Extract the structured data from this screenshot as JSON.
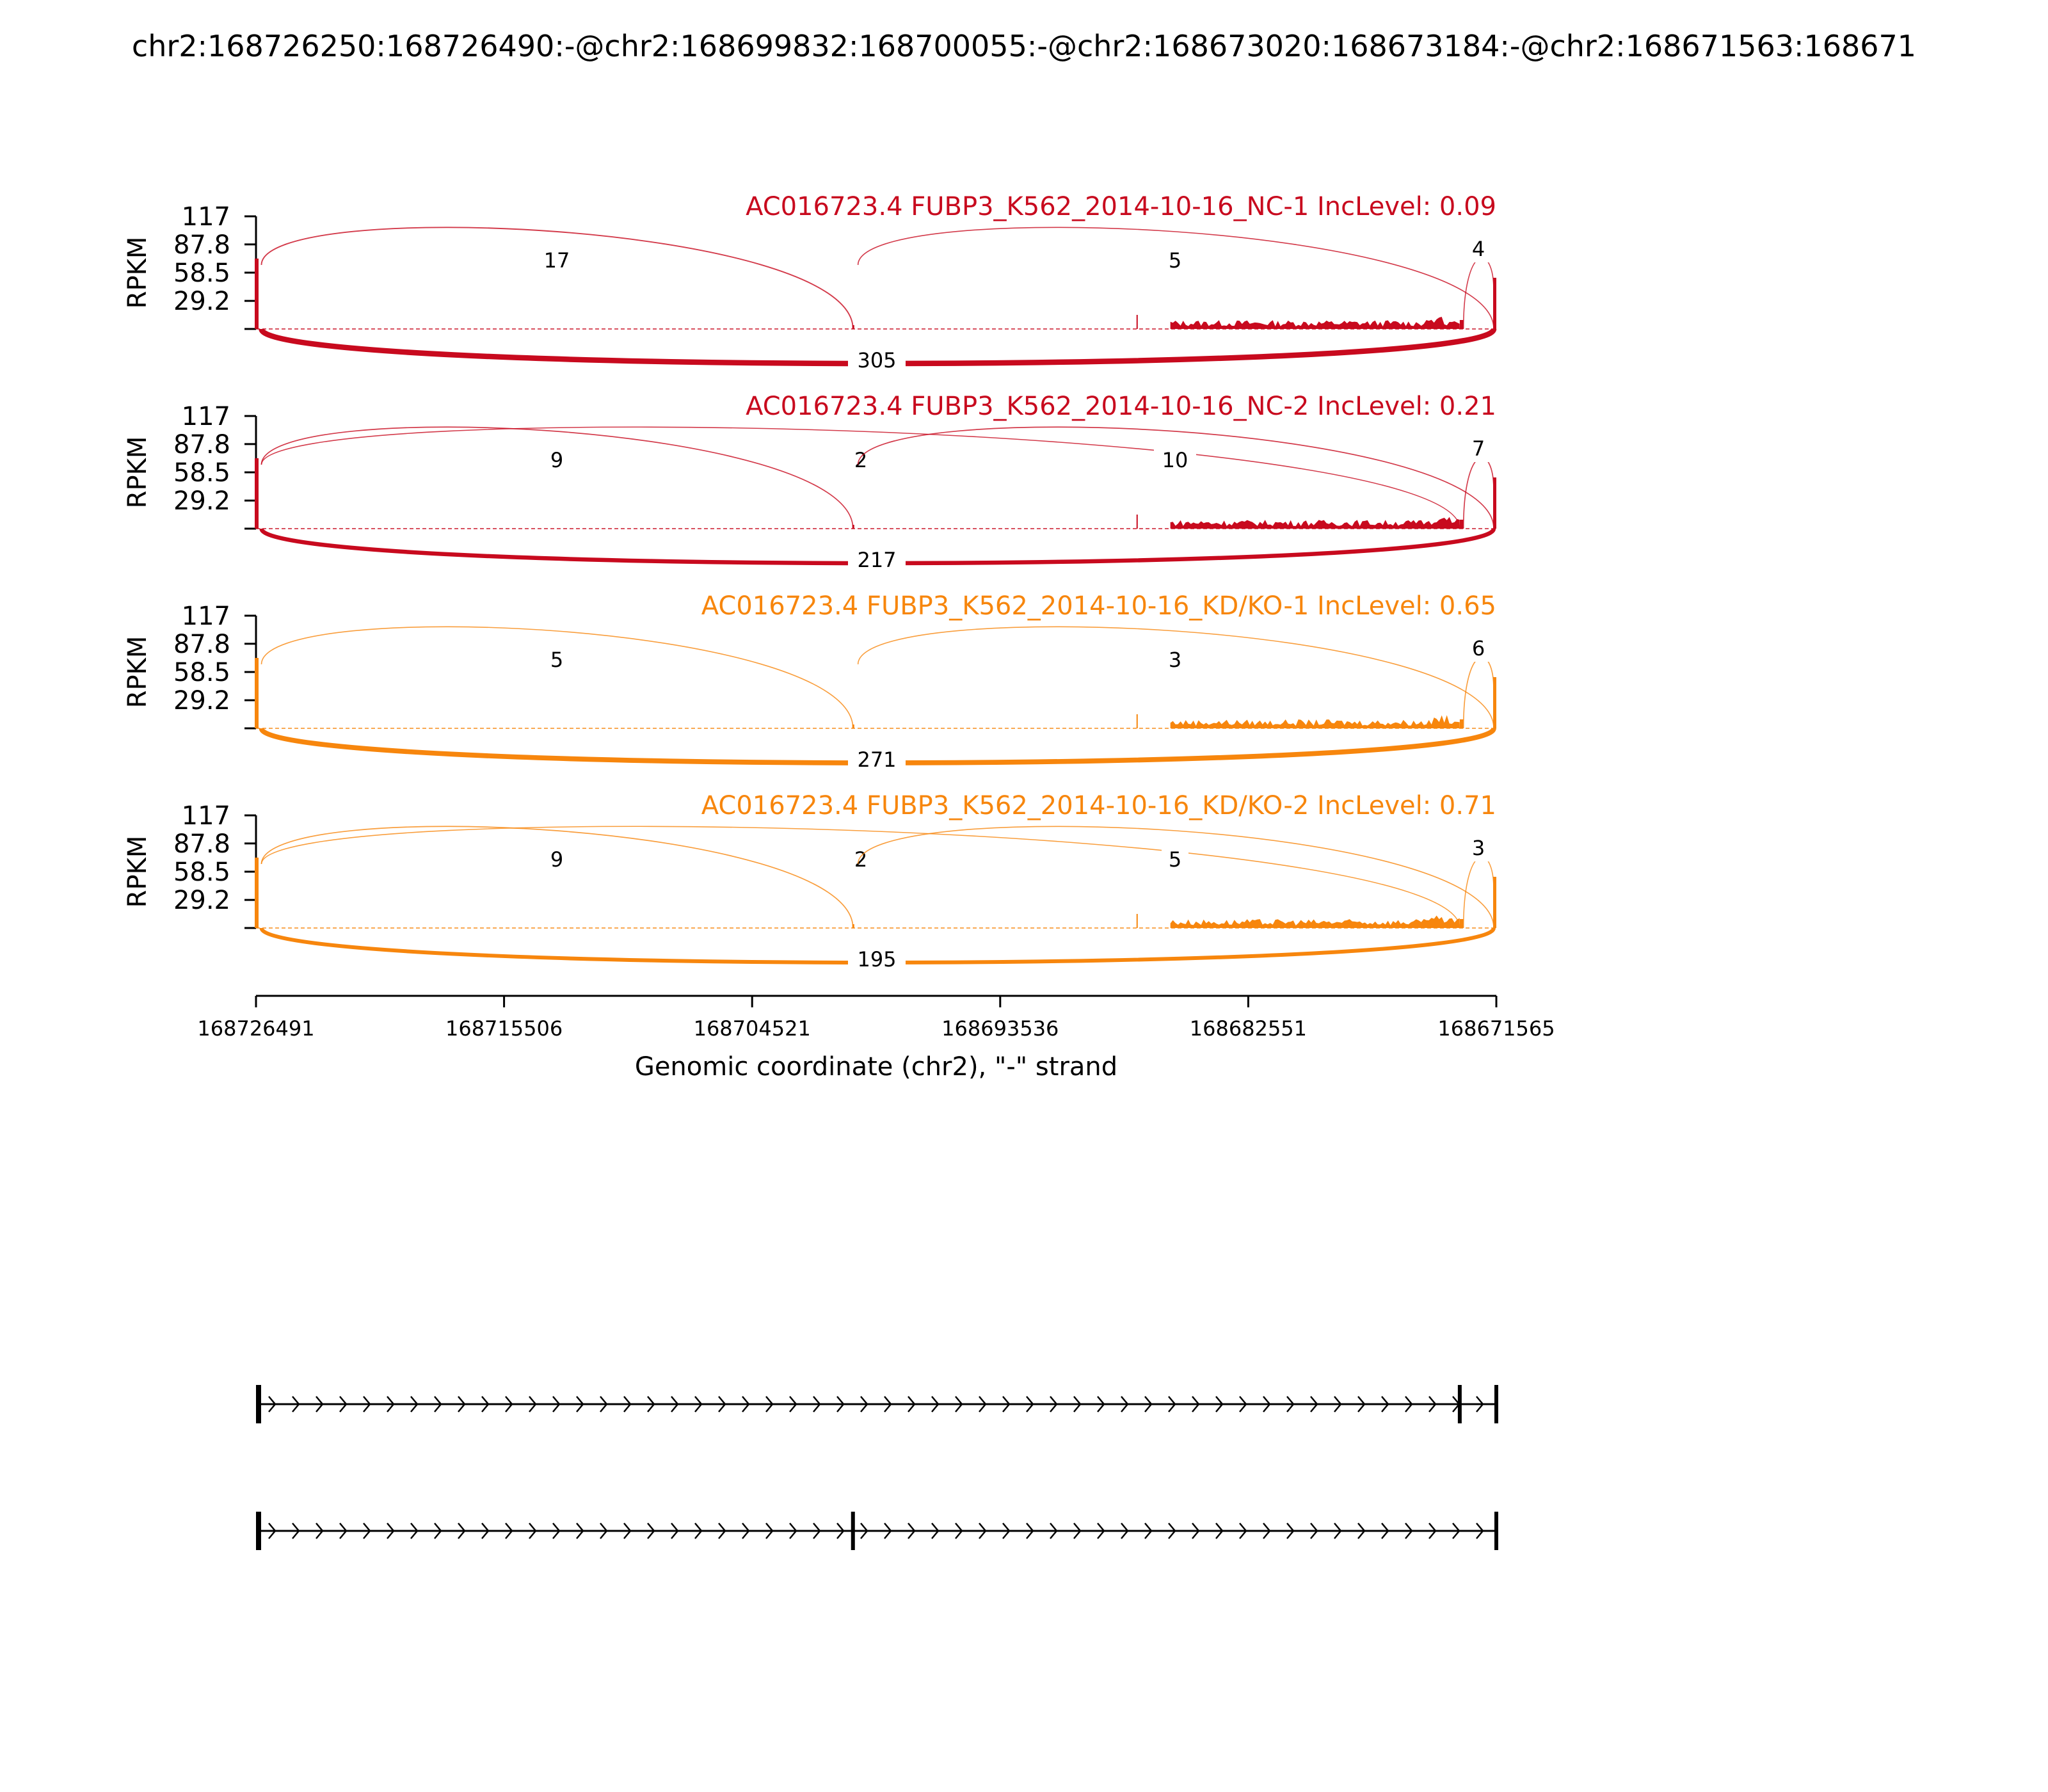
{
  "chart_data": {
    "type": "sashimi",
    "title": "chr2:168726250:168726490:-@chr2:168699832:168700055:-@chr2:168673020:168673184:-@chr2:168671563:168671",
    "ylabel": "RPKM",
    "xlabel": "Genomic coordinate (chr2), \"-\" strand",
    "x_range": [
      168726491,
      168671565
    ],
    "x_ticks": [
      "168726491",
      "168715506",
      "168704521",
      "168693536",
      "168682551",
      "168671565"
    ],
    "y_range": [
      0,
      117
    ],
    "y_ticks": [
      "117",
      "87.8",
      "58.5",
      "29.2"
    ],
    "colors": {
      "nc": "#c80a1e",
      "kd": "#f7860d",
      "axis": "#000000"
    },
    "exons": {
      "e1": [
        168726491,
        168726250
      ],
      "e2": [
        168700055,
        168699832
      ],
      "e3": [
        168673184,
        168673020
      ],
      "e4": [
        168671563,
        168671565
      ]
    },
    "samples": [
      {
        "label": "AC016723.4 FUBP3_K562_2014-10-16_NC-1 IncLevel: 0.09",
        "group": "nc",
        "junctions": [
          {
            "from": "e1",
            "to": "e2",
            "count": "17",
            "side": "top"
          },
          {
            "from": "e2",
            "to": "e4",
            "count": "5",
            "side": "top"
          },
          {
            "from": "e3",
            "to": "e4",
            "count": "4",
            "side": "top"
          },
          {
            "from": "e1",
            "to": "e4",
            "count": "305",
            "side": "bottom"
          }
        ]
      },
      {
        "label": "AC016723.4 FUBP3_K562_2014-10-16_NC-2 IncLevel: 0.21",
        "group": "nc",
        "junctions": [
          {
            "from": "e1",
            "to": "e2",
            "count": "9",
            "side": "top"
          },
          {
            "from": "e1",
            "to": "e3",
            "count": "2",
            "side": "top"
          },
          {
            "from": "e2",
            "to": "e4",
            "count": "10",
            "side": "top"
          },
          {
            "from": "e3",
            "to": "e4",
            "count": "7",
            "side": "top"
          },
          {
            "from": "e1",
            "to": "e4",
            "count": "217",
            "side": "bottom"
          }
        ]
      },
      {
        "label": "AC016723.4 FUBP3_K562_2014-10-16_KD/KO-1 IncLevel: 0.65",
        "group": "kd",
        "junctions": [
          {
            "from": "e1",
            "to": "e2",
            "count": "5",
            "side": "top"
          },
          {
            "from": "e2",
            "to": "e4",
            "count": "3",
            "side": "top"
          },
          {
            "from": "e3",
            "to": "e4",
            "count": "6",
            "side": "top"
          },
          {
            "from": "e1",
            "to": "e4",
            "count": "271",
            "side": "bottom"
          }
        ]
      },
      {
        "label": "AC016723.4 FUBP3_K562_2014-10-16_KD/KO-2 IncLevel: 0.71",
        "group": "kd",
        "junctions": [
          {
            "from": "e1",
            "to": "e2",
            "count": "9",
            "side": "top"
          },
          {
            "from": "e1",
            "to": "e3",
            "count": "2",
            "side": "top"
          },
          {
            "from": "e2",
            "to": "e4",
            "count": "5",
            "side": "top"
          },
          {
            "from": "e3",
            "to": "e4",
            "count": "3",
            "side": "top"
          },
          {
            "from": "e1",
            "to": "e4",
            "count": "195",
            "side": "bottom"
          }
        ]
      }
    ],
    "isoforms": [
      {
        "exons": [
          "e1",
          "e3",
          "e4"
        ]
      },
      {
        "exons": [
          "e1",
          "e2",
          "e4"
        ]
      }
    ]
  }
}
